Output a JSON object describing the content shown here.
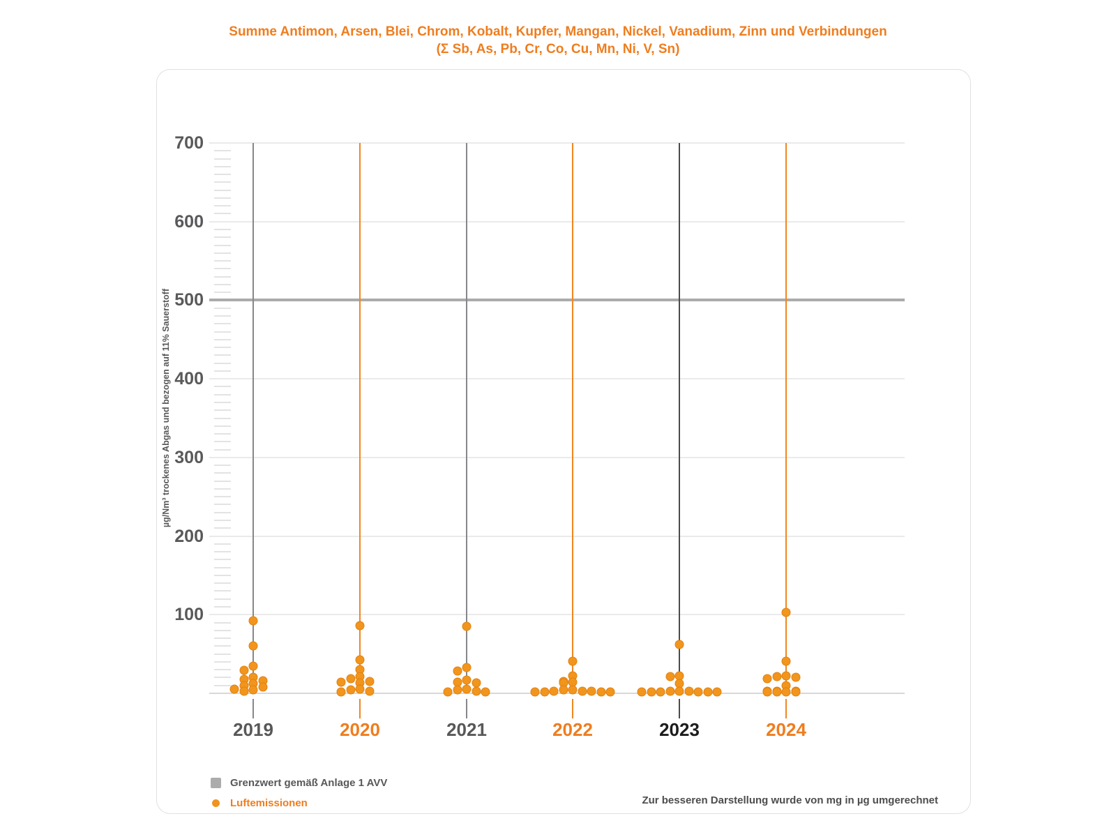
{
  "title": {
    "line1": "Summe Antimon, Arsen, Blei, Chrom, Kobalt, Kupfer, Mangan, Nickel, Vanadium, Zinn und Verbindungen",
    "line2": "(Σ Sb, As, Pb, Cr, Co, Cu, Mn, Ni, V, Sn)"
  },
  "y_axis": {
    "label": "µg/Nm³ trockenes Abgas und bezogen auf 11% Sauerstoff",
    "tick_labels": [
      "700",
      "600",
      "500",
      "400",
      "300",
      "200",
      "100"
    ]
  },
  "legend": {
    "limit": {
      "label": "Grenzwert gemäß Anlage 1 AVV",
      "color": "#ACACAC"
    },
    "emissions": {
      "label": "Luftemissionen",
      "color": "#F0931F"
    }
  },
  "footnote": "Zur besseren Darstellung wurde von mg in µg umgerechnet",
  "chart_data": {
    "type": "scatter",
    "subtype": "beeswarm-strip",
    "title": "Summe Antimon, Arsen, Blei, Chrom, Kobalt, Kupfer, Mangan, Nickel, Vanadium, Zinn und Verbindungen (Σ Sb, As, Pb, Cr, Co, Cu, Mn, Ni, V, Sn)",
    "ylabel": "µg/Nm³ trockenes Abgas und bezogen auf 11% Sauerstoff",
    "ylim": [
      0,
      700
    ],
    "y_major_step": 100,
    "y_minor_step": 10,
    "grid": true,
    "legend_position": "bottom-left",
    "limit_line": {
      "value": 500,
      "label": "Grenzwert gemäß Anlage 1 AVV",
      "color": "#ABABAB"
    },
    "categories": [
      "2019",
      "2020",
      "2021",
      "2022",
      "2023",
      "2024"
    ],
    "category_label_colors": [
      "#58585A",
      "#EF7D1E",
      "#58585A",
      "#EF7D1E",
      "#1C1C1E",
      "#EF7D1E"
    ],
    "category_line_colors": [
      "#86878A",
      "#F0861F",
      "#86878A",
      "#F0861F",
      "#4A4B4D",
      "#F0861F"
    ],
    "series": [
      {
        "name": "Luftemissionen",
        "color": "#F2951D",
        "unit": "µg/Nm³",
        "values_per_category": [
          [
            92,
            60,
            35,
            29,
            20,
            18,
            16,
            12,
            10,
            8,
            5,
            4,
            3
          ],
          [
            86,
            43,
            30,
            21,
            19,
            15,
            14,
            13,
            5,
            4,
            3,
            2
          ],
          [
            85,
            33,
            28,
            17,
            14,
            13,
            5,
            4,
            3,
            2,
            2
          ],
          [
            41,
            22,
            15,
            14,
            13,
            4,
            4,
            3,
            3,
            3,
            2,
            2,
            2,
            2
          ],
          [
            62,
            22,
            21,
            12,
            3,
            3,
            3,
            2,
            2,
            2,
            2,
            2,
            2
          ],
          [
            103,
            41,
            22,
            21,
            20,
            19,
            10,
            3,
            3,
            3,
            2,
            2,
            2,
            2
          ]
        ]
      }
    ]
  }
}
